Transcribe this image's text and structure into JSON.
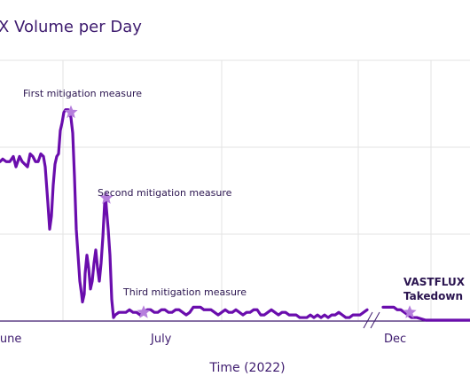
{
  "chart_data": {
    "type": "line",
    "title": "X Volume per Day",
    "xlabel": "Time (2022)",
    "ylabel": "",
    "x_ticks": [
      "June",
      "July",
      "Dec"
    ],
    "colors": {
      "line": "#6a0dad",
      "marker": "#b57edc",
      "grid": "#e3e3e3",
      "axis": "#3d1a6e",
      "text": "#3d1a6e"
    },
    "grid": true,
    "axis_break": "between July and Dec",
    "ylim": [
      0,
      100
    ],
    "series": [
      {
        "segments": [
          [
            [
              0,
              61
            ],
            [
              3,
              62
            ],
            [
              7,
              61
            ],
            [
              11,
              61
            ],
            [
              15,
              63
            ],
            [
              18,
              59
            ],
            [
              22,
              63
            ],
            [
              25,
              61
            ],
            [
              28,
              60
            ],
            [
              31,
              59
            ],
            [
              34,
              64
            ],
            [
              37,
              63
            ],
            [
              40,
              61
            ],
            [
              43,
              61
            ],
            [
              46,
              64
            ],
            [
              49,
              63
            ],
            [
              51,
              59
            ],
            [
              54,
              45
            ],
            [
              56,
              35
            ],
            [
              58,
              40
            ],
            [
              60,
              52
            ],
            [
              62,
              60
            ],
            [
              64,
              63
            ],
            [
              66,
              64
            ],
            [
              68,
              73
            ],
            [
              70,
              76
            ],
            [
              72,
              80
            ],
            [
              74,
              81
            ],
            [
              77,
              81
            ],
            [
              80,
              78
            ],
            [
              82,
              72
            ],
            [
              84,
              55
            ],
            [
              86,
              35
            ],
            [
              88,
              25
            ],
            [
              90,
              15
            ],
            [
              92,
              10
            ],
            [
              93,
              7
            ],
            [
              95,
              10
            ],
            [
              96,
              18
            ],
            [
              98,
              25
            ],
            [
              100,
              20
            ],
            [
              102,
              12
            ],
            [
              104,
              15
            ],
            [
              106,
              22
            ],
            [
              108,
              27
            ],
            [
              110,
              20
            ],
            [
              112,
              15
            ],
            [
              114,
              22
            ],
            [
              116,
              32
            ],
            [
              118,
              45
            ],
            [
              119,
              48
            ],
            [
              120,
              43
            ],
            [
              122,
              35
            ],
            [
              124,
              25
            ],
            [
              126,
              8
            ],
            [
              128,
              1
            ],
            [
              130,
              2
            ],
            [
              134,
              3
            ],
            [
              138,
              3
            ],
            [
              142,
              3
            ],
            [
              146,
              4
            ],
            [
              150,
              3
            ],
            [
              154,
              3
            ],
            [
              158,
              2
            ],
            [
              162,
              3
            ],
            [
              166,
              4
            ],
            [
              170,
              4
            ],
            [
              174,
              3
            ],
            [
              178,
              3
            ],
            [
              182,
              4
            ],
            [
              186,
              4
            ],
            [
              190,
              3
            ],
            [
              194,
              3
            ],
            [
              198,
              4
            ],
            [
              202,
              4
            ],
            [
              206,
              3
            ],
            [
              210,
              2
            ],
            [
              214,
              3
            ],
            [
              218,
              5
            ],
            [
              222,
              5
            ],
            [
              226,
              5
            ],
            [
              230,
              4
            ],
            [
              234,
              4
            ],
            [
              238,
              4
            ],
            [
              242,
              3
            ],
            [
              246,
              2
            ],
            [
              250,
              3
            ],
            [
              254,
              4
            ],
            [
              258,
              3
            ],
            [
              262,
              3
            ],
            [
              266,
              4
            ],
            [
              270,
              3
            ],
            [
              274,
              2
            ],
            [
              278,
              3
            ],
            [
              282,
              3
            ],
            [
              286,
              4
            ],
            [
              290,
              4
            ],
            [
              294,
              2
            ],
            [
              298,
              2
            ],
            [
              302,
              3
            ],
            [
              306,
              4
            ],
            [
              310,
              3
            ],
            [
              314,
              2
            ],
            [
              318,
              3
            ],
            [
              322,
              3
            ],
            [
              326,
              2
            ],
            [
              330,
              2
            ],
            [
              334,
              2
            ],
            [
              338,
              1
            ],
            [
              342,
              1
            ],
            [
              346,
              1
            ],
            [
              350,
              2
            ],
            [
              354,
              1
            ],
            [
              358,
              2
            ],
            [
              362,
              1
            ],
            [
              366,
              2
            ],
            [
              370,
              1
            ],
            [
              374,
              2
            ],
            [
              378,
              2
            ],
            [
              382,
              3
            ],
            [
              386,
              2
            ],
            [
              390,
              1
            ],
            [
              394,
              1
            ],
            [
              398,
              2
            ],
            [
              402,
              2
            ],
            [
              406,
              2
            ],
            [
              410,
              3
            ],
            [
              414,
              4
            ]
          ],
          [
            [
              432,
              5
            ],
            [
              436,
              5
            ],
            [
              440,
              5
            ],
            [
              444,
              5
            ],
            [
              448,
              4
            ],
            [
              452,
              4
            ],
            [
              456,
              3
            ],
            [
              460,
              2
            ],
            [
              464,
              1
            ],
            [
              470,
              1
            ],
            [
              480,
              0
            ],
            [
              490,
              0
            ],
            [
              500,
              0
            ],
            [
              510,
              0
            ],
            [
              520,
              0
            ],
            [
              530,
              0
            ]
          ]
        ]
      }
    ],
    "annotations": [
      {
        "label": "First mitigation measure",
        "x": 80,
        "y": 80
      },
      {
        "label": "Second mitigation measure",
        "x": 120,
        "y": 47
      },
      {
        "label": "Third mitigation measure",
        "x": 162,
        "y": 3
      },
      {
        "label": "VASTFLUX Takedown",
        "label_lines": [
          "VASTFLUX",
          "Takedown"
        ],
        "x": 462,
        "y": 3
      }
    ]
  }
}
